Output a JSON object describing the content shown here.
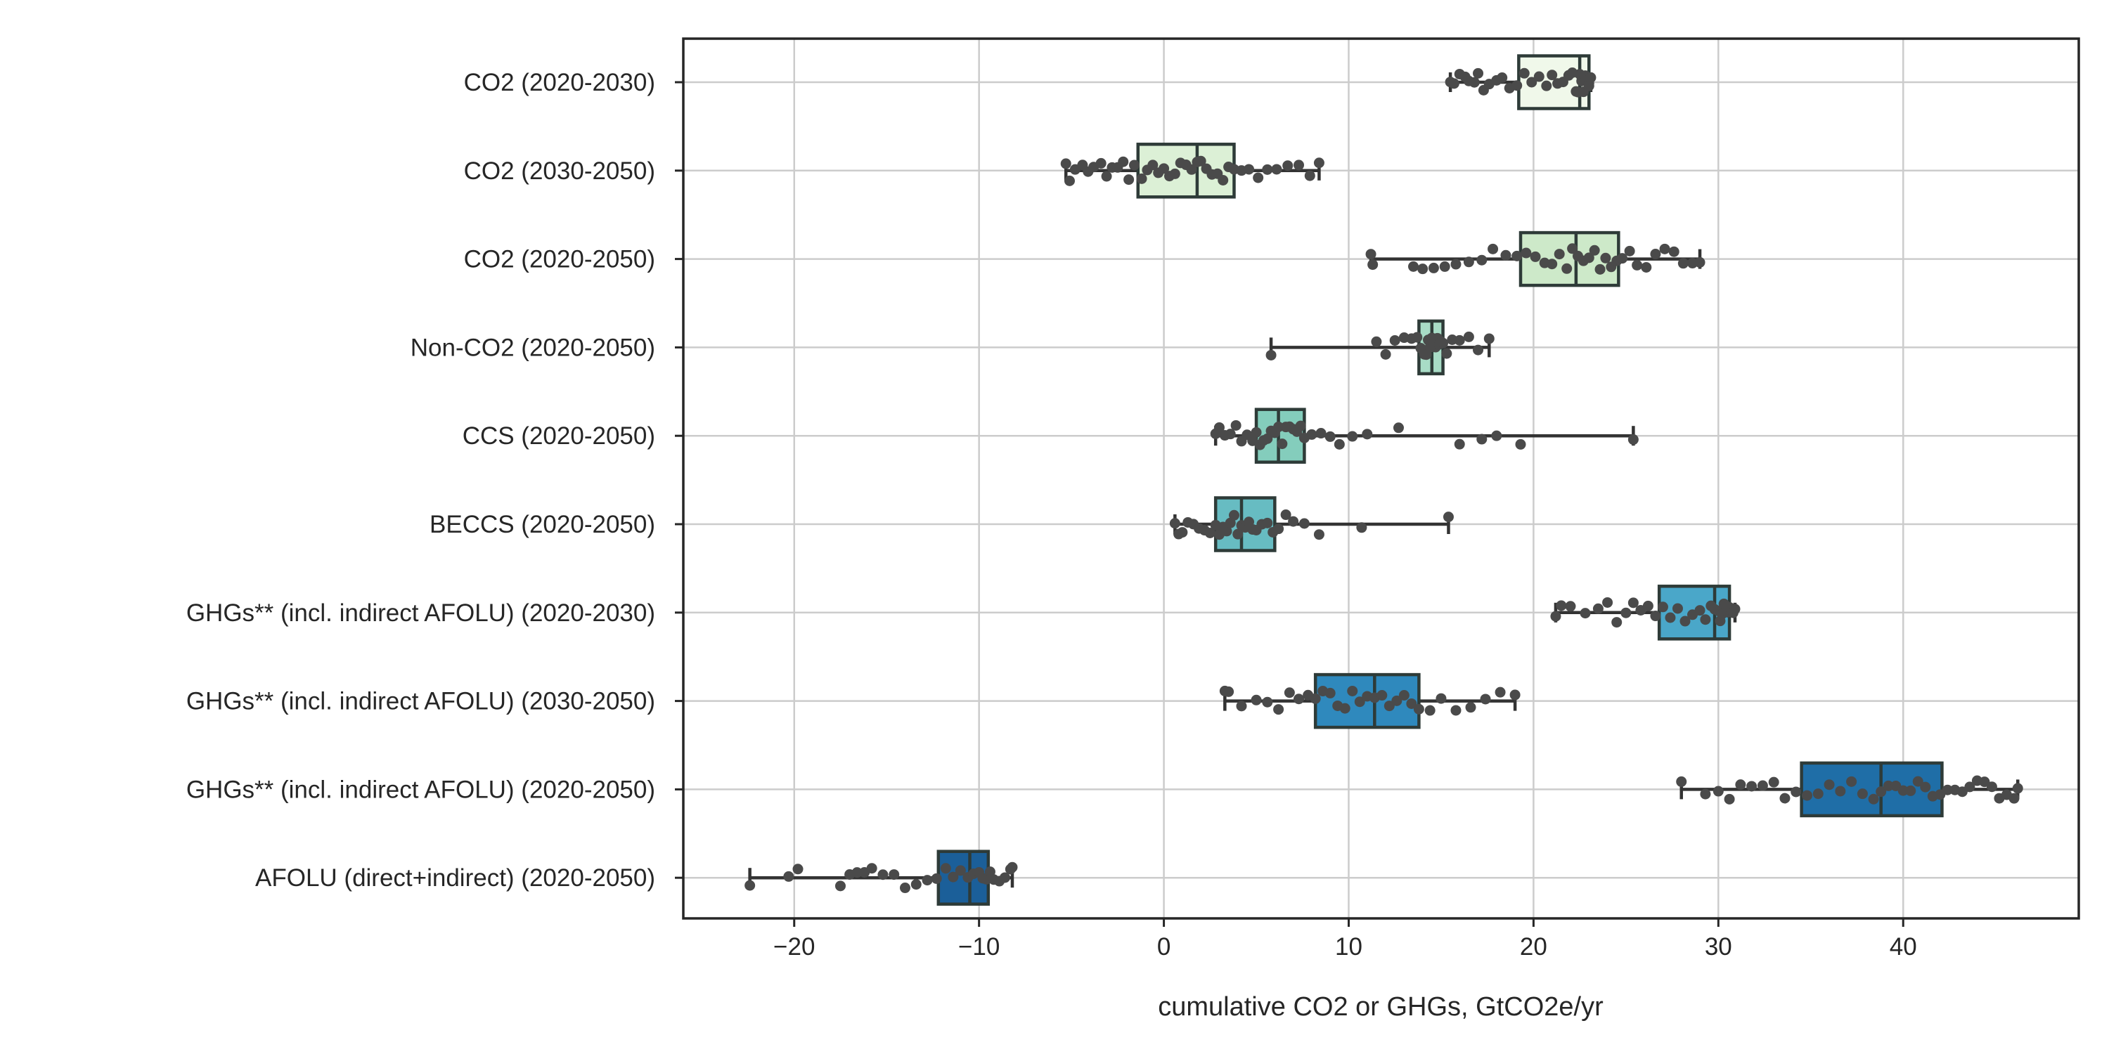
{
  "chart_data": {
    "type": "box",
    "orientation": "horizontal",
    "title": "",
    "xlabel": "cumulative CO2 or GHGs, GtCO2e/yr",
    "ylabel": "",
    "xlim": [
      -26,
      49.5
    ],
    "xticks": [
      -20,
      -10,
      0,
      10,
      20,
      30,
      40
    ],
    "xtick_labels": [
      "−20",
      "−10",
      "0",
      "10",
      "20",
      "30",
      "40"
    ],
    "grid": true,
    "legend": "none",
    "point_color": "#4a4a4a",
    "series": [
      {
        "name": "CO2 (2020-2030)",
        "color": "#f0f8ea",
        "whisker_low": 15.5,
        "q1": 19.2,
        "median": 22.5,
        "q3": 23.0,
        "whisker_high": 23.1,
        "points": [
          15.5,
          15.7,
          16.0,
          16.3,
          16.5,
          16.8,
          17.0,
          17.3,
          17.6,
          18.0,
          18.3,
          18.7,
          19.1,
          19.5,
          19.9,
          20.3,
          20.7,
          21.0,
          21.3,
          21.6,
          21.9,
          22.1,
          22.3,
          22.4,
          22.5,
          22.6,
          22.7,
          22.8,
          22.9,
          23.0,
          23.0,
          23.1
        ]
      },
      {
        "name": "CO2 (2030-2050)",
        "color": "#dcf0d6",
        "whisker_low": -5.3,
        "q1": -1.4,
        "median": 1.8,
        "q3": 3.8,
        "whisker_high": 8.4,
        "points": [
          -5.3,
          -5.1,
          -4.8,
          -4.4,
          -4.1,
          -3.8,
          -3.4,
          -3.1,
          -2.8,
          -2.5,
          -2.2,
          -1.9,
          -1.6,
          -1.2,
          -0.9,
          -0.6,
          -0.3,
          0.0,
          0.3,
          0.6,
          0.9,
          1.2,
          1.5,
          1.8,
          2.0,
          2.3,
          2.6,
          2.9,
          3.2,
          3.5,
          3.8,
          4.2,
          4.6,
          5.1,
          5.6,
          6.1,
          6.7,
          7.3,
          7.9,
          8.4
        ]
      },
      {
        "name": "CO2 (2020-2050)",
        "color": "#cde9c9",
        "whisker_low": 11.2,
        "q1": 19.3,
        "median": 22.3,
        "q3": 24.6,
        "whisker_high": 29.0,
        "points": [
          11.2,
          11.3,
          13.5,
          14.0,
          14.6,
          15.2,
          15.8,
          16.5,
          17.2,
          17.8,
          18.5,
          19.1,
          19.6,
          20.1,
          20.6,
          21.0,
          21.4,
          21.8,
          22.1,
          22.4,
          22.7,
          23.0,
          23.3,
          23.6,
          23.9,
          24.2,
          24.5,
          24.8,
          25.2,
          25.6,
          26.1,
          26.6,
          27.1,
          27.6,
          28.1,
          28.6,
          29.0
        ]
      },
      {
        "name": "Non-CO2 (2020-2050)",
        "color": "#a8dcc6",
        "whisker_low": 5.8,
        "q1": 13.8,
        "median": 14.5,
        "q3": 15.1,
        "whisker_high": 17.6,
        "points": [
          5.8,
          11.5,
          12.0,
          12.5,
          13.0,
          13.4,
          13.7,
          13.9,
          14.1,
          14.2,
          14.3,
          14.4,
          14.5,
          14.6,
          14.7,
          14.8,
          14.9,
          15.0,
          15.1,
          15.3,
          15.6,
          16.0,
          16.5,
          17.0,
          17.6
        ]
      },
      {
        "name": "CCS (2020-2050)",
        "color": "#84cdbc",
        "whisker_low": 2.8,
        "q1": 5.0,
        "median": 6.2,
        "q3": 7.6,
        "whisker_high": 25.4,
        "points": [
          2.8,
          3.0,
          3.3,
          3.6,
          3.9,
          4.2,
          4.5,
          4.8,
          5.0,
          5.2,
          5.4,
          5.6,
          5.8,
          6.0,
          6.2,
          6.4,
          6.6,
          6.8,
          7.0,
          7.2,
          7.4,
          7.6,
          8.0,
          8.5,
          9.0,
          9.5,
          10.2,
          11.0,
          12.7,
          16.0,
          17.2,
          18.0,
          19.3,
          25.4
        ]
      },
      {
        "name": "BECCS (2020-2050)",
        "color": "#67bcc2",
        "whisker_low": 0.6,
        "q1": 2.8,
        "median": 4.2,
        "q3": 6.0,
        "whisker_high": 15.4,
        "points": [
          0.6,
          0.8,
          1.0,
          1.3,
          1.6,
          1.9,
          2.2,
          2.5,
          2.8,
          3.0,
          3.2,
          3.4,
          3.6,
          3.8,
          4.0,
          4.2,
          4.4,
          4.6,
          4.8,
          5.0,
          5.3,
          5.6,
          5.9,
          6.2,
          6.6,
          7.0,
          7.6,
          8.4,
          10.7,
          15.4
        ]
      },
      {
        "name": "GHGs** (incl. indirect AFOLU) (2020-2030)",
        "color": "#4aa7c9",
        "whisker_low": 21.2,
        "q1": 26.8,
        "median": 29.8,
        "q3": 30.6,
        "whisker_high": 30.9,
        "points": [
          21.2,
          21.5,
          22.0,
          22.8,
          23.5,
          24.0,
          24.5,
          25.0,
          25.4,
          25.8,
          26.2,
          26.6,
          27.0,
          27.4,
          27.8,
          28.2,
          28.6,
          29.0,
          29.3,
          29.6,
          29.8,
          30.0,
          30.1,
          30.2,
          30.3,
          30.4,
          30.5,
          30.6,
          30.7,
          30.8,
          30.9
        ]
      },
      {
        "name": "GHGs** (incl. indirect AFOLU) (2030-2050)",
        "color": "#2f89bd",
        "whisker_low": 3.3,
        "q1": 8.2,
        "median": 11.4,
        "q3": 13.8,
        "whisker_high": 19.0,
        "points": [
          3.3,
          3.5,
          4.2,
          5.0,
          5.6,
          6.2,
          6.8,
          7.3,
          7.8,
          8.2,
          8.6,
          9.0,
          9.4,
          9.8,
          10.2,
          10.6,
          11.0,
          11.4,
          11.8,
          12.2,
          12.6,
          13.0,
          13.4,
          13.8,
          14.4,
          15.0,
          15.8,
          16.6,
          17.4,
          18.2,
          19.0
        ]
      },
      {
        "name": "GHGs** (incl. indirect AFOLU) (2020-2050)",
        "color": "#1f6ea7",
        "whisker_low": 28.0,
        "q1": 34.5,
        "median": 38.8,
        "q3": 42.1,
        "whisker_high": 46.2,
        "points": [
          28.0,
          29.3,
          30.0,
          30.6,
          31.2,
          31.8,
          32.4,
          33.0,
          33.6,
          34.2,
          34.8,
          35.4,
          36.0,
          36.6,
          37.2,
          37.8,
          38.4,
          38.8,
          39.2,
          39.6,
          40.0,
          40.4,
          40.8,
          41.2,
          41.6,
          42.0,
          42.4,
          42.8,
          43.2,
          43.6,
          44.0,
          44.4,
          44.8,
          45.2,
          45.6,
          46.0,
          46.2
        ]
      },
      {
        "name": "AFOLU (direct+indirect) (2020-2050)",
        "color": "#1b5f99",
        "whisker_low": -22.4,
        "q1": -12.2,
        "median": -10.5,
        "q3": -9.5,
        "whisker_high": -8.2,
        "points": [
          -22.4,
          -20.3,
          -19.8,
          -17.5,
          -17.0,
          -16.6,
          -16.2,
          -15.8,
          -15.2,
          -14.6,
          -14.0,
          -13.4,
          -12.8,
          -12.3,
          -11.8,
          -11.4,
          -11.0,
          -10.6,
          -10.3,
          -10.0,
          -9.8,
          -9.6,
          -9.4,
          -9.2,
          -8.9,
          -8.6,
          -8.3,
          -8.2
        ]
      }
    ]
  }
}
